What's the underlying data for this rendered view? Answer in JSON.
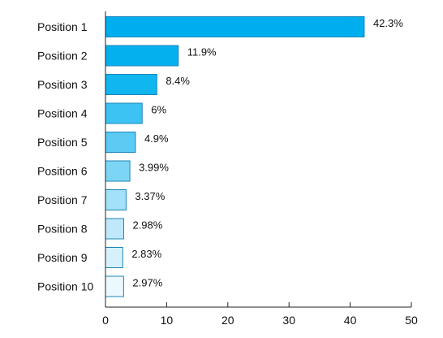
{
  "chart_data": {
    "type": "bar",
    "orientation": "horizontal",
    "categories": [
      "Position 1",
      "Position 2",
      "Position 3",
      "Position 4",
      "Position 5",
      "Position 6",
      "Position 7",
      "Position 8",
      "Position 9",
      "Position 10"
    ],
    "values": [
      42.3,
      11.9,
      8.4,
      6,
      4.9,
      3.99,
      3.37,
      2.98,
      2.83,
      2.97
    ],
    "data_labels": [
      "42.3%",
      "11.9%",
      "8.4%",
      "6%",
      "4.9%",
      "3.99%",
      "3.37%",
      "2.98%",
      "2.83%",
      "2.97%"
    ],
    "bar_colors": [
      "#00aeef",
      "#05b0ef",
      "#10b6f0",
      "#3cc2f3",
      "#5ccbf4",
      "#7dd5f6",
      "#a2e1f8",
      "#bfe9fa",
      "#d6f1fb",
      "#ebf8fd"
    ],
    "bar_border": "#1c86b8",
    "xlim": [
      0,
      50
    ],
    "xticks": [
      0,
      10,
      20,
      30,
      40,
      50
    ],
    "title": "",
    "xlabel": "",
    "ylabel": "",
    "grid": false,
    "legend": "none"
  }
}
